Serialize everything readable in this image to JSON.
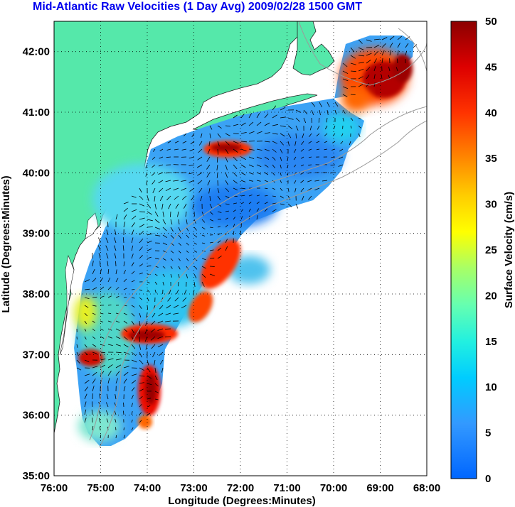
{
  "title": "Mid-Atlantic Raw Velocities (1 Day Avg) 2009/02/28 1500 GMT",
  "map": {
    "xlabel": "Longitude (Degrees:Minutes)",
    "ylabel": "Latitude (Degrees:Minutes)",
    "lon_range": [
      -76,
      -68
    ],
    "lat_range": [
      35,
      42.5
    ],
    "x_ticks": [
      "76:00",
      "75:00",
      "74:00",
      "73:00",
      "72:00",
      "71:00",
      "70:00",
      "69:00",
      "68:00"
    ],
    "y_ticks": [
      "35:00",
      "36:00",
      "37:00",
      "38:00",
      "39:00",
      "40:00",
      "41:00",
      "42:00"
    ],
    "land_color": "#55e8aa",
    "grid": "dotted"
  },
  "colorbar": {
    "label": "Surface Velocity (cm/s)",
    "min": 0,
    "max": 50,
    "ticks": [
      "0",
      "5",
      "10",
      "15",
      "20",
      "25",
      "30",
      "35",
      "40",
      "45",
      "50"
    ],
    "colormap": "jet"
  }
}
